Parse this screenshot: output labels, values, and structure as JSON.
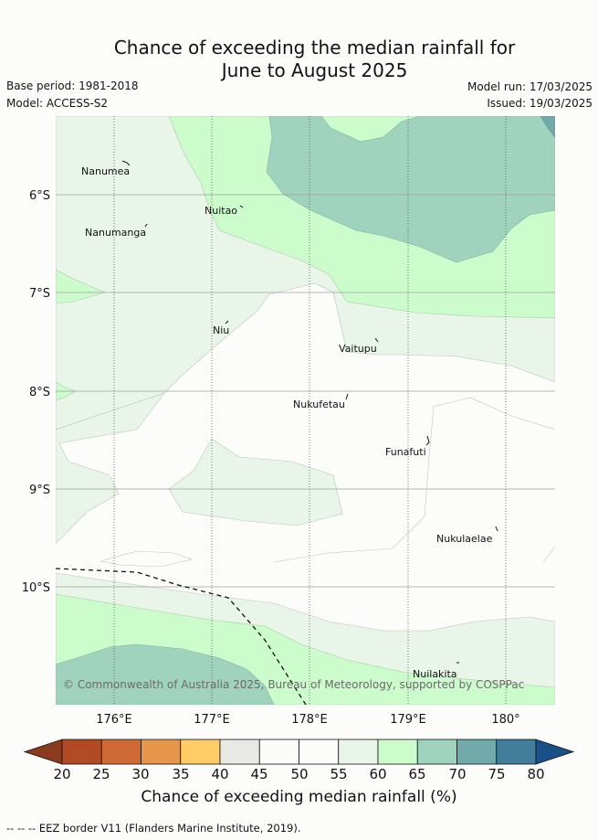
{
  "title_line1": "Chance of exceeding the median rainfall for",
  "title_line2": "June to August 2025",
  "base_period": "Base period: 1981-2018",
  "model": "Model: ACCESS-S2",
  "model_run": "Model run: 17/03/2025",
  "issued": "Issued: 19/03/2025",
  "copyright": "© Commonwealth of Australia 2025, Bureau of Meteorology, supported by COSPPac",
  "lat_labels": [
    "6°S",
    "7°S",
    "8°S",
    "9°S",
    "10°S"
  ],
  "lon_labels": [
    "176°E",
    "177°E",
    "178°E",
    "179°E",
    "180°"
  ],
  "islands": [
    "Nanumea",
    "Nuitao",
    "Nanumanga",
    "Niu",
    "Vaitupu",
    "Nukufetau",
    "Funafuti",
    "Nukulaelae",
    "Nuilakita"
  ],
  "colorbar": {
    "ticks": [
      "20",
      "25",
      "30",
      "35",
      "40",
      "45",
      "50",
      "55",
      "60",
      "65",
      "70",
      "75",
      "80"
    ],
    "colors": [
      "#8b3a1e",
      "#b24a26",
      "#d06a35",
      "#e5964b",
      "#ffcc66",
      "#e8e8e4",
      "#fbfcfa",
      "#fcfdfb",
      "#eaf5ea",
      "#ccfccc",
      "#9fd3bd",
      "#72a9ab",
      "#427e9c",
      "#1a4f87"
    ],
    "title": "Chance of exceeding median rainfall (%)"
  },
  "eez_note": "-- -- -- EEZ border V11 (Flanders Marine Institute, 2019)."
}
